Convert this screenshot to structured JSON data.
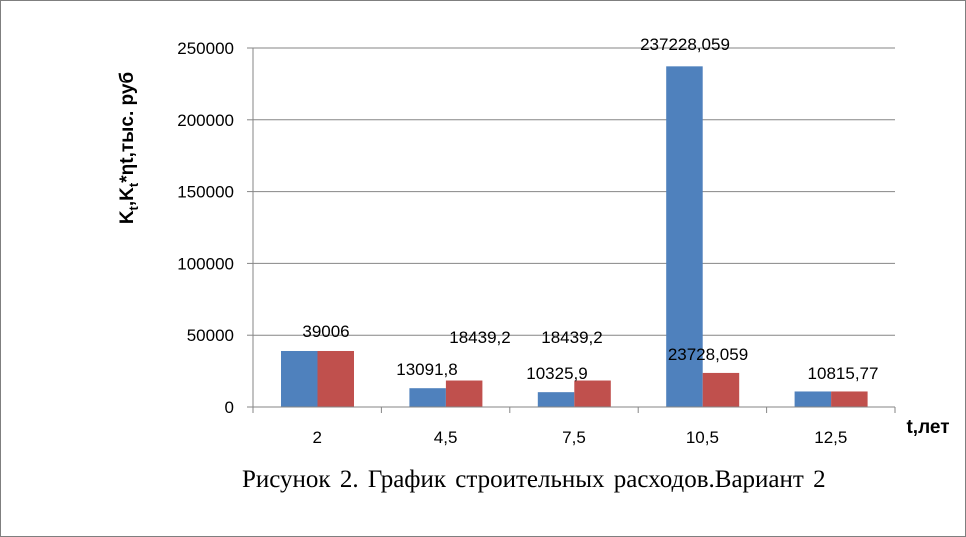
{
  "chart_data": {
    "type": "bar",
    "categories": [
      "2",
      "4,5",
      "7,5",
      "10,5",
      "12,5"
    ],
    "series": [
      {
        "color": "#4f81bd",
        "values": [
          39006,
          13091.8,
          10325.9,
          237228.059,
          10815.77
        ]
      },
      {
        "color": "#c0504d",
        "values": [
          39006,
          18439.2,
          18439.2,
          23728.059,
          10815.77
        ]
      }
    ],
    "data_labels": [
      {
        "category": 0,
        "text": "39006"
      },
      {
        "category": 1,
        "text": "13091,8"
      },
      {
        "category": 1,
        "text": "18439,2"
      },
      {
        "category": 2,
        "text": "10325,9"
      },
      {
        "category": 2,
        "text": "18439,2"
      },
      {
        "category": 3,
        "text": "237228,059"
      },
      {
        "category": 3,
        "text": "23728,059"
      },
      {
        "category": 4,
        "text": "10815,77"
      }
    ],
    "ylim": [
      0,
      250000
    ],
    "yticks": [
      0,
      50000,
      100000,
      150000,
      200000,
      250000
    ],
    "xlabel": "t,лет",
    "ylabel": "K",
    "ylabel_sub": "t",
    "ylabel_mid": ",K",
    "ylabel_sub2": "t",
    "ylabel_tail": "*ηt,тыс. руб",
    "grid": true,
    "legend": "none"
  },
  "caption": "Рисунок 2. График строительных расходов.Вариант 2"
}
